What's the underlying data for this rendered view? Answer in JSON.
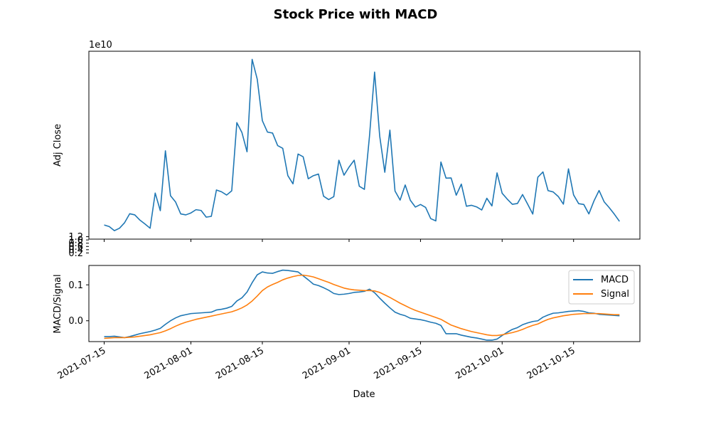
{
  "chart_data": [
    {
      "type": "line",
      "title": "Stock Price with MACD",
      "xlabel": "",
      "ylabel": "Adj Close",
      "offset_text": "1e10",
      "ylim": [
        1.05,
        12.6
      ],
      "yticks": [
        0.2,
        0.4,
        0.6,
        0.8,
        1.0,
        1.2
      ],
      "ytick_labels": [
        "0.2",
        "0.4",
        "0.6",
        "0.8",
        "1.0",
        "1.2"
      ],
      "xlim": [
        "2021-07-12",
        "2021-10-28"
      ],
      "color": "#1f77b4",
      "series": [
        {
          "name": "",
          "x": [
            "2021-07-15",
            "2021-07-16",
            "2021-07-17",
            "2021-07-18",
            "2021-07-19",
            "2021-07-20",
            "2021-07-21",
            "2021-07-22",
            "2021-07-23",
            "2021-07-24",
            "2021-07-25",
            "2021-07-26",
            "2021-07-27",
            "2021-07-28",
            "2021-07-29",
            "2021-07-30",
            "2021-07-31",
            "2021-08-01",
            "2021-08-02",
            "2021-08-03",
            "2021-08-04",
            "2021-08-05",
            "2021-08-06",
            "2021-08-07",
            "2021-08-08",
            "2021-08-09",
            "2021-08-10",
            "2021-08-11",
            "2021-08-12",
            "2021-08-13",
            "2021-08-14",
            "2021-08-15",
            "2021-08-16",
            "2021-08-17",
            "2021-08-18",
            "2021-08-19",
            "2021-08-20",
            "2021-08-21",
            "2021-08-22",
            "2021-08-23",
            "2021-08-24",
            "2021-08-25",
            "2021-08-26",
            "2021-08-27",
            "2021-08-28",
            "2021-08-29",
            "2021-08-30",
            "2021-08-31",
            "2021-09-01",
            "2021-09-02",
            "2021-09-03",
            "2021-09-04",
            "2021-09-05",
            "2021-09-06",
            "2021-09-07",
            "2021-09-08",
            "2021-09-09",
            "2021-09-10",
            "2021-09-11",
            "2021-09-12",
            "2021-09-13",
            "2021-09-14",
            "2021-09-15",
            "2021-09-16",
            "2021-09-17",
            "2021-09-18",
            "2021-09-19",
            "2021-09-20",
            "2021-09-21",
            "2021-09-22",
            "2021-09-23",
            "2021-09-24",
            "2021-09-25",
            "2021-09-26",
            "2021-09-27",
            "2021-09-28",
            "2021-09-29",
            "2021-09-30",
            "2021-10-01",
            "2021-10-02",
            "2021-10-03",
            "2021-10-04",
            "2021-10-05",
            "2021-10-06",
            "2021-10-07",
            "2021-10-08",
            "2021-10-09",
            "2021-10-10",
            "2021-10-11",
            "2021-10-12",
            "2021-10-13",
            "2021-10-14",
            "2021-10-15",
            "2021-10-16",
            "2021-10-17",
            "2021-10-18",
            "2021-10-19",
            "2021-10-20",
            "2021-10-21",
            "2021-10-22",
            "2021-10-23",
            "2021-10-24"
          ],
          "y": [
            1.92,
            1.82,
            1.57,
            1.72,
            2.06,
            2.61,
            2.54,
            2.22,
            1.98,
            1.72,
            3.88,
            2.8,
            6.48,
            3.72,
            3.33,
            2.6,
            2.54,
            2.66,
            2.86,
            2.81,
            2.4,
            2.45,
            4.07,
            3.96,
            3.76,
            4.02,
            8.21,
            7.6,
            6.42,
            12.1,
            10.88,
            8.33,
            7.63,
            7.57,
            6.8,
            6.63,
            4.95,
            4.45,
            6.28,
            6.11,
            4.76,
            4.95,
            5.05,
            3.69,
            3.48,
            3.66,
            5.9,
            4.98,
            5.48,
            5.9,
            4.3,
            4.11,
            7.38,
            11.32,
            7.39,
            5.16,
            7.75,
            4.01,
            3.45,
            4.38,
            3.44,
            3.02,
            3.18,
            3.0,
            2.31,
            2.17,
            5.79,
            4.8,
            4.81,
            3.75,
            4.43,
            3.07,
            3.13,
            3.03,
            2.84,
            3.56,
            3.09,
            5.12,
            3.87,
            3.51,
            3.19,
            3.24,
            3.79,
            3.2,
            2.59,
            4.86,
            5.18,
            4.03,
            3.95,
            3.67,
            3.2,
            5.37,
            3.77,
            3.23,
            3.18,
            2.6,
            3.4,
            4.04,
            3.34,
            2.98,
            2.58,
            2.14
          ]
        }
      ]
    },
    {
      "type": "line",
      "title": "",
      "xlabel": "Date",
      "ylabel": "MACD/Signal",
      "ylim": [
        -0.058,
        0.154
      ],
      "yticks": [
        0.0,
        0.1
      ],
      "ytick_labels": [
        "0.0",
        "0.1"
      ],
      "xlim": [
        "2021-07-12",
        "2021-10-28"
      ],
      "xticks": [
        "2021-07-15",
        "2021-08-01",
        "2021-08-15",
        "2021-09-01",
        "2021-09-15",
        "2021-10-01",
        "2021-10-15"
      ],
      "xtick_labels": [
        "2021-07-15",
        "2021-08-01",
        "2021-08-15",
        "2021-09-01",
        "2021-09-15",
        "2021-10-01",
        "2021-10-15"
      ],
      "legend": "top-right",
      "series": [
        {
          "name": "MACD",
          "color": "#1f77b4",
          "x": [
            "2021-07-15",
            "2021-07-16",
            "2021-07-17",
            "2021-07-18",
            "2021-07-19",
            "2021-07-20",
            "2021-07-21",
            "2021-07-22",
            "2021-07-23",
            "2021-07-24",
            "2021-07-25",
            "2021-07-26",
            "2021-07-27",
            "2021-07-28",
            "2021-07-29",
            "2021-07-30",
            "2021-07-31",
            "2021-08-01",
            "2021-08-02",
            "2021-08-03",
            "2021-08-04",
            "2021-08-05",
            "2021-08-06",
            "2021-08-07",
            "2021-08-08",
            "2021-08-09",
            "2021-08-10",
            "2021-08-11",
            "2021-08-12",
            "2021-08-13",
            "2021-08-14",
            "2021-08-15",
            "2021-08-16",
            "2021-08-17",
            "2021-08-18",
            "2021-08-19",
            "2021-08-20",
            "2021-08-21",
            "2021-08-22",
            "2021-08-23",
            "2021-08-24",
            "2021-08-25",
            "2021-08-26",
            "2021-08-27",
            "2021-08-28",
            "2021-08-29",
            "2021-08-30",
            "2021-08-31",
            "2021-09-01",
            "2021-09-02",
            "2021-09-03",
            "2021-09-04",
            "2021-09-05",
            "2021-09-06",
            "2021-09-07",
            "2021-09-08",
            "2021-09-09",
            "2021-09-10",
            "2021-09-11",
            "2021-09-12",
            "2021-09-13",
            "2021-09-14",
            "2021-09-15",
            "2021-09-16",
            "2021-09-17",
            "2021-09-18",
            "2021-09-19",
            "2021-09-20",
            "2021-09-21",
            "2021-09-22",
            "2021-09-23",
            "2021-09-24",
            "2021-09-25",
            "2021-09-26",
            "2021-09-27",
            "2021-09-28",
            "2021-09-29",
            "2021-09-30",
            "2021-10-01",
            "2021-10-02",
            "2021-10-03",
            "2021-10-04",
            "2021-10-05",
            "2021-10-06",
            "2021-10-07",
            "2021-10-08",
            "2021-10-09",
            "2021-10-10",
            "2021-10-11",
            "2021-10-12",
            "2021-10-13",
            "2021-10-14",
            "2021-10-15",
            "2021-10-16",
            "2021-10-17",
            "2021-10-18",
            "2021-10-19",
            "2021-10-20",
            "2021-10-21",
            "2021-10-22",
            "2021-10-23",
            "2021-10-24"
          ],
          "y": [
            -0.044,
            -0.044,
            -0.043,
            -0.045,
            -0.047,
            -0.044,
            -0.04,
            -0.036,
            -0.033,
            -0.03,
            -0.026,
            -0.021,
            -0.01,
            0.0,
            0.008,
            0.014,
            0.017,
            0.02,
            0.021,
            0.022,
            0.023,
            0.024,
            0.03,
            0.032,
            0.035,
            0.04,
            0.055,
            0.064,
            0.08,
            0.106,
            0.128,
            0.136,
            0.133,
            0.132,
            0.137,
            0.141,
            0.14,
            0.138,
            0.136,
            0.125,
            0.114,
            0.102,
            0.098,
            0.092,
            0.085,
            0.076,
            0.073,
            0.074,
            0.076,
            0.079,
            0.08,
            0.082,
            0.088,
            0.078,
            0.063,
            0.049,
            0.036,
            0.024,
            0.018,
            0.014,
            0.007,
            0.005,
            0.003,
            0.0,
            -0.004,
            -0.007,
            -0.013,
            -0.036,
            -0.036,
            -0.036,
            -0.04,
            -0.043,
            -0.046,
            -0.048,
            -0.051,
            -0.054,
            -0.054,
            -0.051,
            -0.041,
            -0.032,
            -0.024,
            -0.019,
            -0.011,
            -0.006,
            -0.002,
            0.0,
            0.01,
            0.016,
            0.021,
            0.022,
            0.024,
            0.026,
            0.027,
            0.028,
            0.026,
            0.022,
            0.021,
            0.018,
            0.017,
            0.016,
            0.015,
            0.014
          ]
        },
        {
          "name": "Signal",
          "color": "#ff7f0e",
          "x": [
            "2021-07-15",
            "2021-07-16",
            "2021-07-17",
            "2021-07-18",
            "2021-07-19",
            "2021-07-20",
            "2021-07-21",
            "2021-07-22",
            "2021-07-23",
            "2021-07-24",
            "2021-07-25",
            "2021-07-26",
            "2021-07-27",
            "2021-07-28",
            "2021-07-29",
            "2021-07-30",
            "2021-07-31",
            "2021-08-01",
            "2021-08-02",
            "2021-08-03",
            "2021-08-04",
            "2021-08-05",
            "2021-08-06",
            "2021-08-07",
            "2021-08-08",
            "2021-08-09",
            "2021-08-10",
            "2021-08-11",
            "2021-08-12",
            "2021-08-13",
            "2021-08-14",
            "2021-08-15",
            "2021-08-16",
            "2021-08-17",
            "2021-08-18",
            "2021-08-19",
            "2021-08-20",
            "2021-08-21",
            "2021-08-22",
            "2021-08-23",
            "2021-08-24",
            "2021-08-25",
            "2021-08-26",
            "2021-08-27",
            "2021-08-28",
            "2021-08-29",
            "2021-08-30",
            "2021-08-31",
            "2021-09-01",
            "2021-09-02",
            "2021-09-03",
            "2021-09-04",
            "2021-09-05",
            "2021-09-06",
            "2021-09-07",
            "2021-09-08",
            "2021-09-09",
            "2021-09-10",
            "2021-09-11",
            "2021-09-12",
            "2021-09-13",
            "2021-09-14",
            "2021-09-15",
            "2021-09-16",
            "2021-09-17",
            "2021-09-18",
            "2021-09-19",
            "2021-09-20",
            "2021-09-21",
            "2021-09-22",
            "2021-09-23",
            "2021-09-24",
            "2021-09-25",
            "2021-09-26",
            "2021-09-27",
            "2021-09-28",
            "2021-09-29",
            "2021-09-30",
            "2021-10-01",
            "2021-10-02",
            "2021-10-03",
            "2021-10-04",
            "2021-10-05",
            "2021-10-06",
            "2021-10-07",
            "2021-10-08",
            "2021-10-09",
            "2021-10-10",
            "2021-10-11",
            "2021-10-12",
            "2021-10-13",
            "2021-10-14",
            "2021-10-15",
            "2021-10-16",
            "2021-10-17",
            "2021-10-18",
            "2021-10-19",
            "2021-10-20",
            "2021-10-21",
            "2021-10-22",
            "2021-10-23",
            "2021-10-24"
          ],
          "y": [
            -0.049,
            -0.048,
            -0.047,
            -0.047,
            -0.047,
            -0.046,
            -0.045,
            -0.043,
            -0.041,
            -0.039,
            -0.036,
            -0.033,
            -0.028,
            -0.022,
            -0.015,
            -0.009,
            -0.004,
            0.0,
            0.004,
            0.007,
            0.01,
            0.013,
            0.016,
            0.019,
            0.022,
            0.025,
            0.03,
            0.036,
            0.044,
            0.055,
            0.069,
            0.084,
            0.094,
            0.101,
            0.107,
            0.114,
            0.119,
            0.123,
            0.126,
            0.127,
            0.125,
            0.122,
            0.117,
            0.112,
            0.107,
            0.101,
            0.096,
            0.091,
            0.088,
            0.086,
            0.085,
            0.084,
            0.084,
            0.083,
            0.079,
            0.072,
            0.065,
            0.057,
            0.049,
            0.042,
            0.035,
            0.029,
            0.024,
            0.019,
            0.014,
            0.009,
            0.004,
            -0.004,
            -0.012,
            -0.017,
            -0.022,
            -0.026,
            -0.03,
            -0.033,
            -0.036,
            -0.039,
            -0.041,
            -0.041,
            -0.039,
            -0.036,
            -0.033,
            -0.029,
            -0.024,
            -0.018,
            -0.013,
            -0.009,
            -0.002,
            0.004,
            0.008,
            0.011,
            0.014,
            0.016,
            0.018,
            0.019,
            0.02,
            0.02,
            0.02,
            0.02,
            0.019,
            0.018,
            0.017,
            0.017
          ]
        }
      ]
    }
  ]
}
